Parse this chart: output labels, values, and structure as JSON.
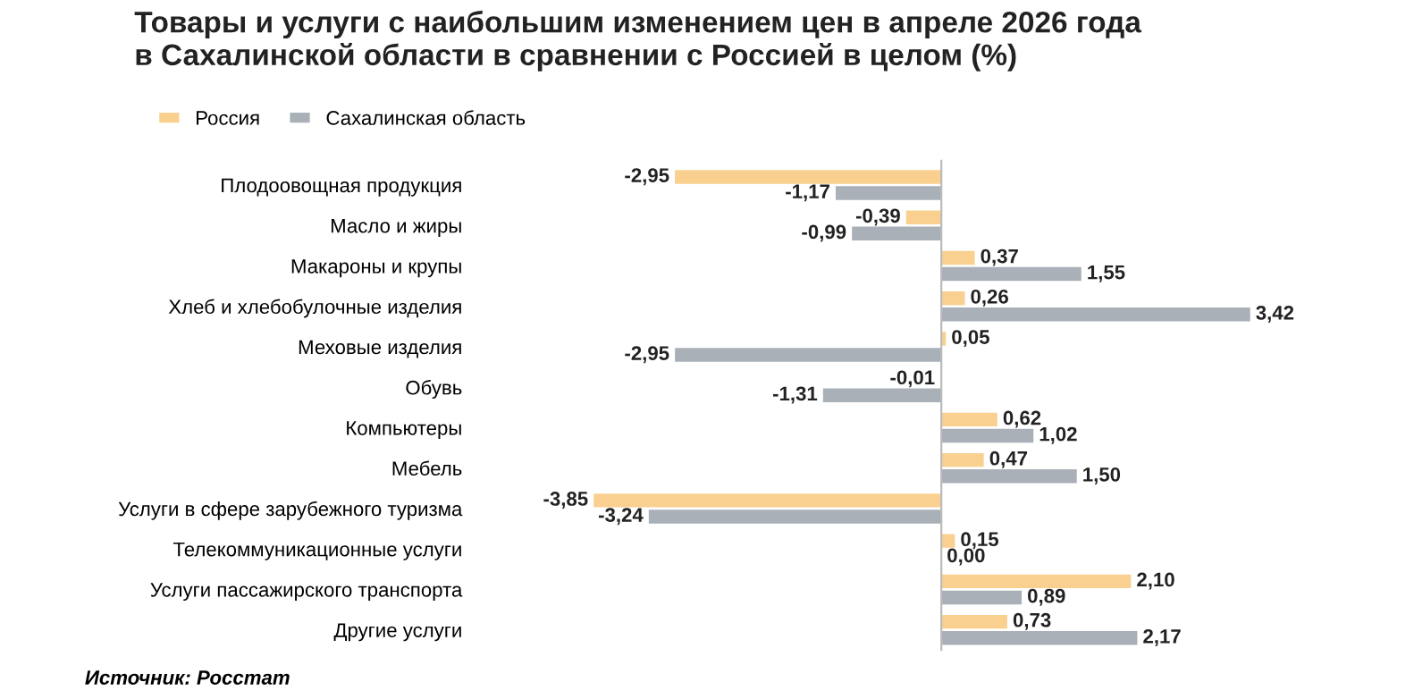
{
  "chart_data": {
    "type": "bar",
    "orientation": "horizontal",
    "title": "Товары и услуги с наибольшим изменением цен в апреле 2026 года\nв Сахалинской области в сравнении с Россией в целом (%)",
    "categories": [
      "Плодоовощная продукция",
      "Масло и жиры",
      "Макароны и крупы",
      "Хлеб и хлебобулочные изделия",
      "Меховые изделия",
      "Обувь",
      "Компьютеры",
      "Мебель",
      "Услуги в сфере зарубежного туризма",
      "Телекоммуникационные услуги",
      "Услуги пассажирского транспорта",
      "Другие услуги"
    ],
    "series": [
      {
        "name": "Россия",
        "color": "#f9d08f",
        "values": [
          -2.95,
          -0.39,
          0.37,
          0.26,
          0.05,
          -0.01,
          0.62,
          0.47,
          -3.85,
          0.15,
          2.1,
          0.73
        ],
        "value_labels": [
          "-2,95",
          "-0,39",
          "0,37",
          "0,26",
          "0,05",
          "-0,01",
          "0,62",
          "0,47",
          "-3,85",
          "0,15",
          "2,10",
          "0,73"
        ]
      },
      {
        "name": "Сахалинская область",
        "color": "#a9b0b8",
        "values": [
          -1.17,
          -0.99,
          1.55,
          3.42,
          -2.95,
          -1.31,
          1.02,
          1.5,
          -3.24,
          0.0,
          0.89,
          2.17
        ],
        "value_labels": [
          "-1,17",
          "-0,99",
          "1,55",
          "3,42",
          "-2,95",
          "-1,31",
          "1,02",
          "1,50",
          "-3,24",
          "0,00",
          "0,89",
          "2,17"
        ]
      }
    ],
    "tick_labels": "y",
    "legend": "top left",
    "grid": false,
    "annotations": [
      "Источник: Росстат"
    ]
  }
}
